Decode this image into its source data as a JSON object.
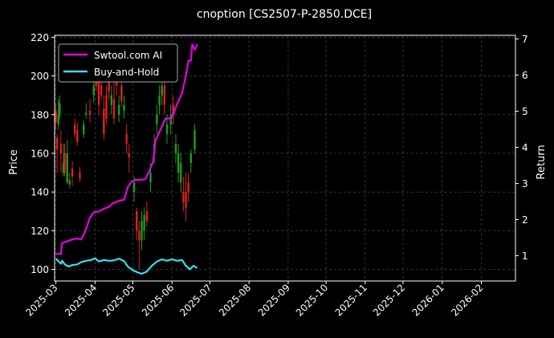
{
  "chart_data": {
    "type": "line",
    "title": "cnoption [CS2507-P-2850.DCE]",
    "xlabel": "",
    "ylabel_left": "Price",
    "ylabel_right": "Return",
    "x_ticks": [
      "2025-03",
      "2025-04",
      "2025-05",
      "2025-06",
      "2025-07",
      "2025-08",
      "2025-09",
      "2025-10",
      "2025-11",
      "2025-12",
      "2026-01",
      "2026-02"
    ],
    "xlim": [
      "2025-02-28",
      "2026-02-28"
    ],
    "y_left_ticks": [
      100,
      120,
      140,
      160,
      180,
      200,
      220
    ],
    "y_left_lim": [
      94,
      221
    ],
    "y_right_ticks": [
      1,
      2,
      3,
      4,
      5,
      6,
      7
    ],
    "y_right_lim": [
      0.3,
      7.1
    ],
    "grid": true,
    "legend": "top-left",
    "colors": {
      "background": "#000000",
      "strategy": "#e600e6",
      "benchmark": "#33e0f0",
      "candle_up": "#1a9e1a",
      "candle_down": "#e02020",
      "grid": "#555555"
    },
    "series": [
      {
        "name": "Swtool.com AI",
        "axis": "right",
        "points": [
          [
            "2025-03-01",
            1.05
          ],
          [
            "2025-03-05",
            1.05
          ],
          [
            "2025-03-06",
            1.35
          ],
          [
            "2025-03-10",
            1.4
          ],
          [
            "2025-03-14",
            1.45
          ],
          [
            "2025-03-18",
            1.48
          ],
          [
            "2025-03-21",
            1.45
          ],
          [
            "2025-03-24",
            1.65
          ],
          [
            "2025-03-28",
            2.05
          ],
          [
            "2025-03-31",
            2.2
          ],
          [
            "2025-04-04",
            2.22
          ],
          [
            "2025-04-08",
            2.3
          ],
          [
            "2025-04-12",
            2.35
          ],
          [
            "2025-04-15",
            2.45
          ],
          [
            "2025-04-20",
            2.52
          ],
          [
            "2025-04-24",
            2.55
          ],
          [
            "2025-04-27",
            2.9
          ],
          [
            "2025-04-30",
            3.05
          ],
          [
            "2025-05-03",
            3.1
          ],
          [
            "2025-05-07",
            3.1
          ],
          [
            "2025-05-11",
            3.12
          ],
          [
            "2025-05-14",
            3.35
          ],
          [
            "2025-05-17",
            3.6
          ],
          [
            "2025-05-19",
            4.2
          ],
          [
            "2025-05-23",
            4.5
          ],
          [
            "2025-05-27",
            4.8
          ],
          [
            "2025-05-31",
            4.8
          ],
          [
            "2025-06-02",
            4.9
          ],
          [
            "2025-06-05",
            5.2
          ],
          [
            "2025-06-09",
            5.5
          ],
          [
            "2025-06-12",
            6.0
          ],
          [
            "2025-06-14",
            6.4
          ],
          [
            "2025-06-16",
            6.4
          ],
          [
            "2025-06-17",
            6.85
          ],
          [
            "2025-06-19",
            6.7
          ],
          [
            "2025-06-21",
            6.85
          ]
        ]
      },
      {
        "name": "Buy-and-Hold",
        "axis": "right",
        "points": [
          [
            "2025-03-01",
            0.92
          ],
          [
            "2025-03-03",
            0.85
          ],
          [
            "2025-03-05",
            0.78
          ],
          [
            "2025-03-06",
            0.86
          ],
          [
            "2025-03-08",
            0.76
          ],
          [
            "2025-03-11",
            0.7
          ],
          [
            "2025-03-14",
            0.74
          ],
          [
            "2025-03-18",
            0.76
          ],
          [
            "2025-03-21",
            0.82
          ],
          [
            "2025-03-25",
            0.86
          ],
          [
            "2025-03-29",
            0.88
          ],
          [
            "2025-04-01",
            0.93
          ],
          [
            "2025-04-04",
            0.84
          ],
          [
            "2025-04-08",
            0.88
          ],
          [
            "2025-04-12",
            0.86
          ],
          [
            "2025-04-16",
            0.87
          ],
          [
            "2025-04-20",
            0.92
          ],
          [
            "2025-04-24",
            0.85
          ],
          [
            "2025-04-27",
            0.7
          ],
          [
            "2025-05-01",
            0.6
          ],
          [
            "2025-05-04",
            0.55
          ],
          [
            "2025-05-08",
            0.5
          ],
          [
            "2025-05-12",
            0.56
          ],
          [
            "2025-05-16",
            0.72
          ],
          [
            "2025-05-20",
            0.84
          ],
          [
            "2025-05-24",
            0.9
          ],
          [
            "2025-05-28",
            0.86
          ],
          [
            "2025-06-01",
            0.9
          ],
          [
            "2025-06-05",
            0.86
          ],
          [
            "2025-06-09",
            0.88
          ],
          [
            "2025-06-12",
            0.72
          ],
          [
            "2025-06-15",
            0.62
          ],
          [
            "2025-06-18",
            0.72
          ],
          [
            "2025-06-21",
            0.66
          ]
        ]
      }
    ],
    "candles": [
      [
        "2025-03-01",
        182,
        176,
        186,
        172
      ],
      [
        "2025-03-02",
        168,
        162,
        170,
        150
      ],
      [
        "2025-03-03",
        175,
        180,
        188,
        172
      ],
      [
        "2025-03-04",
        180,
        186,
        190,
        178
      ],
      [
        "2025-03-05",
        165,
        160,
        172,
        150
      ],
      [
        "2025-03-07",
        150,
        155,
        165,
        148
      ],
      [
        "2025-03-08",
        160,
        150,
        165,
        148
      ],
      [
        "2025-03-10",
        145,
        160,
        167,
        144
      ],
      [
        "2025-03-12",
        144,
        146,
        150,
        142
      ],
      [
        "2025-03-14",
        152,
        148,
        156,
        143
      ],
      [
        "2025-03-16",
        175,
        170,
        178,
        168
      ],
      [
        "2025-03-18",
        172,
        166,
        176,
        164
      ],
      [
        "2025-03-20",
        150,
        147,
        153,
        145
      ],
      [
        "2025-03-23",
        170,
        175,
        177,
        168
      ],
      [
        "2025-03-25",
        180,
        181,
        186,
        178
      ],
      [
        "2025-03-28",
        182,
        180,
        188,
        176
      ],
      [
        "2025-03-31",
        190,
        195,
        200,
        186
      ],
      [
        "2025-04-02",
        205,
        195,
        210,
        192
      ],
      [
        "2025-04-04",
        198,
        185,
        205,
        180
      ],
      [
        "2025-04-06",
        195,
        190,
        200,
        188
      ],
      [
        "2025-04-08",
        183,
        170,
        190,
        167
      ],
      [
        "2025-04-10",
        190,
        178,
        195,
        175
      ],
      [
        "2025-04-12",
        200,
        192,
        210,
        188
      ],
      [
        "2025-04-14",
        185,
        190,
        195,
        180
      ],
      [
        "2025-04-16",
        188,
        178,
        205,
        175
      ],
      [
        "2025-04-18",
        205,
        195,
        210,
        190
      ],
      [
        "2025-04-20",
        180,
        185,
        190,
        176
      ],
      [
        "2025-04-22",
        195,
        187,
        200,
        184
      ],
      [
        "2025-04-24",
        182,
        185,
        190,
        178
      ],
      [
        "2025-04-26",
        170,
        165,
        175,
        160
      ],
      [
        "2025-04-28",
        160,
        158,
        165,
        150
      ],
      [
        "2025-05-02",
        140,
        145,
        148,
        135
      ],
      [
        "2025-05-04",
        130,
        120,
        132,
        115
      ],
      [
        "2025-05-06",
        120,
        115,
        125,
        100
      ],
      [
        "2025-05-08",
        115,
        125,
        130,
        110
      ],
      [
        "2025-05-10",
        120,
        128,
        132,
        115
      ],
      [
        "2025-05-12",
        130,
        125,
        135,
        122
      ],
      [
        "2025-05-15",
        145,
        150,
        155,
        140
      ],
      [
        "2025-05-18",
        160,
        165,
        170,
        155
      ],
      [
        "2025-05-20",
        175,
        180,
        185,
        170
      ],
      [
        "2025-05-22",
        185,
        190,
        195,
        180
      ],
      [
        "2025-05-24",
        190,
        195,
        200,
        185
      ],
      [
        "2025-05-26",
        195,
        185,
        205,
        180
      ],
      [
        "2025-05-28",
        170,
        175,
        180,
        165
      ],
      [
        "2025-05-31",
        175,
        180,
        185,
        170
      ],
      [
        "2025-06-02",
        185,
        180,
        190,
        175
      ],
      [
        "2025-06-04",
        160,
        165,
        170,
        155
      ],
      [
        "2025-06-06",
        150,
        160,
        165,
        145
      ],
      [
        "2025-06-08",
        145,
        155,
        160,
        140
      ],
      [
        "2025-06-10",
        140,
        135,
        148,
        130
      ],
      [
        "2025-06-12",
        140,
        132,
        150,
        125
      ],
      [
        "2025-06-14",
        145,
        140,
        150,
        135
      ],
      [
        "2025-06-16",
        155,
        160,
        162,
        150
      ],
      [
        "2025-06-19",
        162,
        172,
        175,
        160
      ]
    ]
  }
}
